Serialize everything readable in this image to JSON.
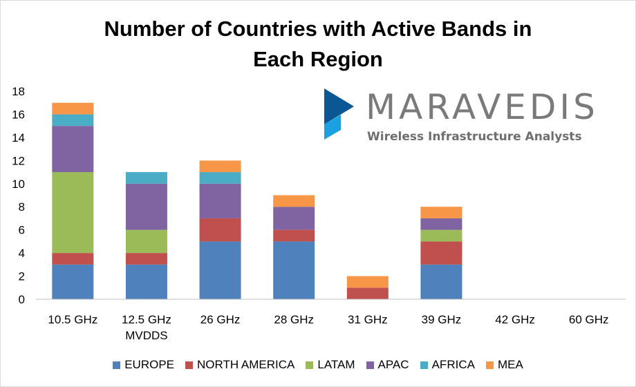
{
  "chart_data": {
    "type": "bar",
    "stacked": true,
    "title": "Number of Countries with Active Bands in Each Region",
    "title_lines": [
      "Number of Countries with Active Bands in",
      "Each Region"
    ],
    "categories": [
      "10.5 GHz",
      "12.5 GHz MVDDS",
      "26 GHz",
      "28 GHz",
      "31 GHz",
      "39 GHz",
      "42 GHz",
      "60 GHz"
    ],
    "category_lines": [
      [
        "10.5 GHz"
      ],
      [
        "12.5 GHz",
        "MVDDS"
      ],
      [
        "26 GHz"
      ],
      [
        "28 GHz"
      ],
      [
        "31 GHz"
      ],
      [
        "39 GHz"
      ],
      [
        "42 GHz"
      ],
      [
        "60 GHz"
      ]
    ],
    "series": [
      {
        "name": "EUROPE",
        "color": "#4f81bd",
        "values": [
          3,
          3,
          5,
          5,
          0,
          3,
          0,
          0
        ]
      },
      {
        "name": "NORTH AMERICA",
        "color": "#c0504d",
        "values": [
          1,
          1,
          2,
          1,
          1,
          2,
          0,
          0
        ]
      },
      {
        "name": "LATAM",
        "color": "#9bbb59",
        "values": [
          7,
          2,
          0,
          0,
          0,
          1,
          0,
          0
        ]
      },
      {
        "name": "APAC",
        "color": "#8064a2",
        "values": [
          4,
          4,
          3,
          2,
          0,
          1,
          0,
          0
        ]
      },
      {
        "name": "AFRICA",
        "color": "#4bacc6",
        "values": [
          1,
          1,
          1,
          0,
          0,
          0,
          0,
          0
        ]
      },
      {
        "name": "MEA",
        "color": "#f79646",
        "values": [
          1,
          0,
          1,
          1,
          1,
          1,
          0,
          0
        ]
      }
    ],
    "xlabel": "",
    "ylabel": "",
    "ylim": [
      0,
      18
    ],
    "yticks": [
      0,
      2,
      4,
      6,
      8,
      10,
      12,
      14,
      16,
      18
    ],
    "grid": false,
    "legend_position": "bottom"
  },
  "logo": {
    "name": "MARAVEDIS",
    "tagline": "Wireless Infrastructure Analysts",
    "colors": {
      "dark": "#0b5796",
      "light": "#1ba1e2",
      "text": "#7a7a7a"
    }
  }
}
